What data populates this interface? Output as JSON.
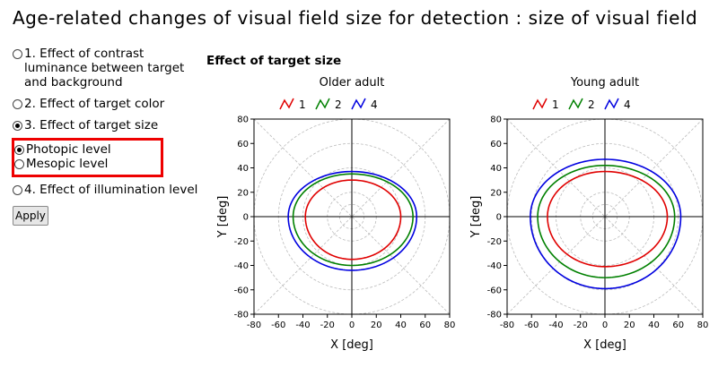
{
  "title": "Age-related changes of visual field size for detection : size of visual field",
  "options": [
    {
      "label": "1. Effect of contrast luminance between target and background",
      "selected": false
    },
    {
      "label": "2. Effect of target color",
      "selected": false
    },
    {
      "label": "3. Effect of target size",
      "selected": true
    },
    {
      "label": "4. Effect of illumination level",
      "selected": false
    }
  ],
  "sub_options": [
    {
      "label": "Photopic level",
      "selected": true
    },
    {
      "label": "Mesopic level",
      "selected": false
    }
  ],
  "apply_label": "Apply",
  "section_title": "Effect of target size",
  "colors": {
    "red": "#e00000",
    "green": "#008000",
    "blue": "#0000e0",
    "highlight": "#e00000"
  },
  "chart_data": [
    {
      "type": "line",
      "title": "Older adult",
      "xlabel": "X [deg]",
      "ylabel": "Y [deg]",
      "xlim": [
        -80,
        80
      ],
      "ylim": [
        -80,
        80
      ],
      "xticks": [
        "-80",
        "-60",
        "-40",
        "-20",
        "0",
        "20",
        "40",
        "60",
        "80"
      ],
      "yticks": [
        "80",
        "60",
        "40",
        "20",
        "0",
        "-20",
        "-40",
        "-60",
        "-80"
      ],
      "legend_position": "top",
      "series": [
        {
          "name": "1",
          "color": "#e00000",
          "left": -38,
          "right": 40,
          "top": 30,
          "bottom": -35
        },
        {
          "name": "2",
          "color": "#008000",
          "left": -48,
          "right": 50,
          "top": 35,
          "bottom": -40
        },
        {
          "name": "4",
          "color": "#0000e0",
          "left": -52,
          "right": 53,
          "top": 37,
          "bottom": -44
        }
      ]
    },
    {
      "type": "line",
      "title": "Young adult",
      "xlabel": "X [deg]",
      "ylabel": "Y [deg]",
      "xlim": [
        -80,
        80
      ],
      "ylim": [
        -80,
        80
      ],
      "xticks": [
        "-80",
        "-60",
        "-40",
        "-20",
        "0",
        "20",
        "40",
        "60",
        "80"
      ],
      "yticks": [
        "80",
        "60",
        "40",
        "20",
        "0",
        "-20",
        "-40",
        "-60",
        "-80"
      ],
      "legend_position": "top",
      "series": [
        {
          "name": "1",
          "color": "#e00000",
          "left": -47,
          "right": 51,
          "top": 37,
          "bottom": -41
        },
        {
          "name": "2",
          "color": "#008000",
          "left": -55,
          "right": 57,
          "top": 42,
          "bottom": -50
        },
        {
          "name": "4",
          "color": "#0000e0",
          "left": -61,
          "right": 62,
          "top": 47,
          "bottom": -59
        }
      ]
    }
  ]
}
